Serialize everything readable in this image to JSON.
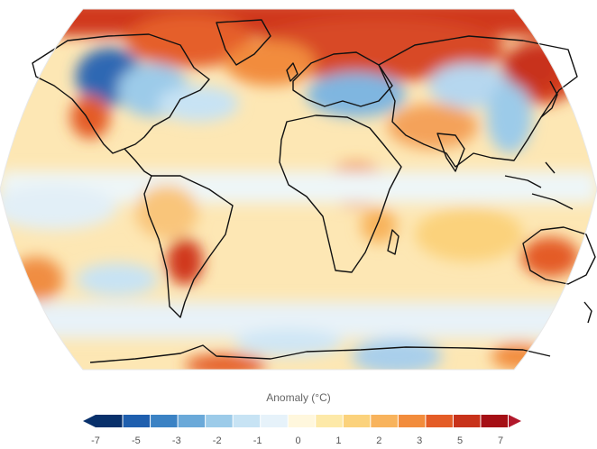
{
  "legend": {
    "title": "Anomaly (°C)",
    "ticks": [
      "-7",
      "-5",
      "-3",
      "-2",
      "-1",
      "0",
      "1",
      "2",
      "3",
      "5",
      "7"
    ],
    "colors": [
      "#08306b",
      "#1f5fae",
      "#3b82c4",
      "#6aa9d9",
      "#9ccbe9",
      "#c7e3f4",
      "#e6f2fa",
      "#fff7dd",
      "#fde9a8",
      "#fbd27c",
      "#f8b35c",
      "#f28c3c",
      "#e45c26",
      "#c8321a",
      "#a50f15"
    ],
    "low_end_color": "#08306b",
    "high_end_color": "#b2182b"
  },
  "map": {
    "projection": "Robinson",
    "ocean_base_color": "#fff1c9",
    "coastline_color": "#000000"
  }
}
